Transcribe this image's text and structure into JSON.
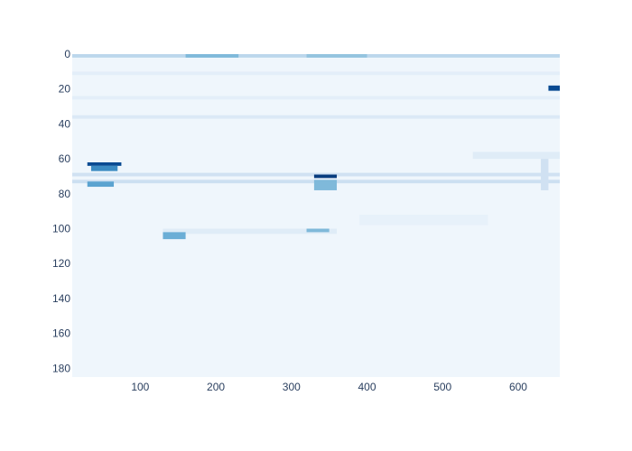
{
  "chart_data": {
    "type": "heatmap",
    "title": "",
    "xlabel": "",
    "ylabel": "",
    "colorscale": "Blues",
    "xlim": [
      10,
      655
    ],
    "ylim": [
      185,
      0
    ],
    "x_ticks": [
      100,
      200,
      300,
      400,
      500,
      600
    ],
    "y_ticks": [
      0,
      20,
      40,
      60,
      80,
      100,
      120,
      140,
      160,
      180
    ],
    "grid": false,
    "legend": "none",
    "background_intensity": 0.04,
    "features": [
      {
        "kind": "band",
        "x": [
          10,
          655
        ],
        "y": [
          0,
          2
        ],
        "intensity": 0.28
      },
      {
        "kind": "band",
        "x": [
          160,
          230
        ],
        "y": [
          0,
          2
        ],
        "intensity": 0.45
      },
      {
        "kind": "band",
        "x": [
          320,
          400
        ],
        "y": [
          0,
          2
        ],
        "intensity": 0.4
      },
      {
        "kind": "band",
        "x": [
          10,
          655
        ],
        "y": [
          10,
          12
        ],
        "intensity": 0.1
      },
      {
        "kind": "band",
        "x": [
          10,
          655
        ],
        "y": [
          24,
          26
        ],
        "intensity": 0.1
      },
      {
        "kind": "band",
        "x": [
          10,
          655
        ],
        "y": [
          35,
          37
        ],
        "intensity": 0.14
      },
      {
        "kind": "band",
        "x": [
          10,
          655
        ],
        "y": [
          68,
          70
        ],
        "intensity": 0.2
      },
      {
        "kind": "band",
        "x": [
          10,
          655
        ],
        "y": [
          72,
          74
        ],
        "intensity": 0.22
      },
      {
        "kind": "band",
        "x": [
          130,
          360
        ],
        "y": [
          100,
          103
        ],
        "intensity": 0.12
      },
      {
        "kind": "band",
        "x": [
          390,
          560
        ],
        "y": [
          92,
          98
        ],
        "intensity": 0.08
      },
      {
        "kind": "band",
        "x": [
          540,
          655
        ],
        "y": [
          56,
          60
        ],
        "intensity": 0.12
      },
      {
        "kind": "spot",
        "x": [
          30,
          75
        ],
        "y": [
          62,
          64
        ],
        "intensity": 0.9
      },
      {
        "kind": "spot",
        "x": [
          35,
          70
        ],
        "y": [
          64,
          67
        ],
        "intensity": 0.65
      },
      {
        "kind": "spot",
        "x": [
          30,
          65
        ],
        "y": [
          73,
          76
        ],
        "intensity": 0.55
      },
      {
        "kind": "spot",
        "x": [
          330,
          360
        ],
        "y": [
          69,
          71
        ],
        "intensity": 0.95
      },
      {
        "kind": "spot",
        "x": [
          330,
          360
        ],
        "y": [
          72,
          78
        ],
        "intensity": 0.45
      },
      {
        "kind": "spot",
        "x": [
          130,
          160
        ],
        "y": [
          102,
          106
        ],
        "intensity": 0.5
      },
      {
        "kind": "spot",
        "x": [
          320,
          350
        ],
        "y": [
          100,
          102
        ],
        "intensity": 0.45
      },
      {
        "kind": "spot",
        "x": [
          640,
          655
        ],
        "y": [
          18,
          21
        ],
        "intensity": 0.9
      },
      {
        "kind": "spot",
        "x": [
          630,
          640
        ],
        "y": [
          60,
          78
        ],
        "intensity": 0.2
      }
    ]
  }
}
